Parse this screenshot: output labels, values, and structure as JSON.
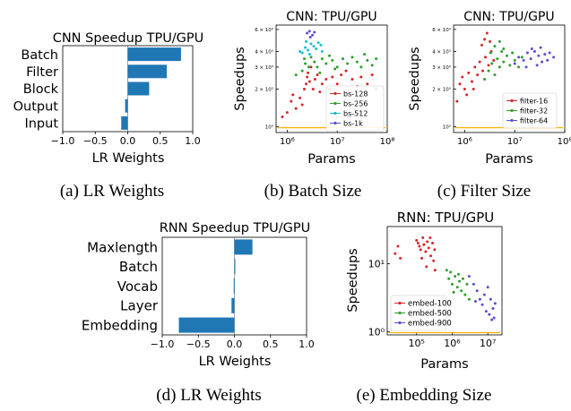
{
  "colors": {
    "bar": "#1f77b4",
    "red": "#d62728",
    "green": "#2ca02c",
    "cyan": "#17becf",
    "purple": "#5a4fcf",
    "hline": "#ffb000"
  },
  "captions": {
    "a": "(a) LR Weights",
    "b": "(b) Batch Size",
    "c": "(c) Filter Size",
    "d": "(d) LR Weights",
    "e": "(e) Embedding Size"
  },
  "chart_data": [
    {
      "id": "a",
      "type": "bar",
      "orientation": "horizontal",
      "title": "CNN Speedup TPU/GPU",
      "xlabel": "LR Weights",
      "categories": [
        "Batch",
        "Filter",
        "Block",
        "Output",
        "Input"
      ],
      "values": [
        0.82,
        0.6,
        0.33,
        -0.04,
        -0.1
      ],
      "xlim": [
        -1.0,
        1.0
      ],
      "xticks": [
        "−1.0",
        "−0.5",
        "0.0",
        "0.5",
        "1.0"
      ]
    },
    {
      "id": "b",
      "type": "scatter",
      "title": "CNN: TPU/GPU",
      "xlabel": "Params",
      "ylabel": "Speedups",
      "xscale": "log",
      "yscale": "log",
      "xlim": [
        600000,
        100000000
      ],
      "ylim": [
        0.9,
        6.5
      ],
      "xticks": [
        "10⁶",
        "10⁷",
        "10⁸"
      ],
      "yticks": [
        "10⁰",
        "2 × 10⁰",
        "3 × 10⁰",
        "4 × 10⁰",
        "6 × 10⁰"
      ],
      "legend": "bottom-right",
      "series": [
        {
          "name": "bs-128",
          "color_key": "red",
          "points": [
            [
              2200000.0,
              2.0
            ],
            [
              2400000.0,
              2.2
            ],
            [
              2500000.0,
              2.5
            ],
            [
              2600000.0,
              2.7
            ],
            [
              2800000.0,
              2.3
            ],
            [
              3000000.0,
              3.0
            ],
            [
              3300000.0,
              2.0
            ],
            [
              3600000.0,
              2.4
            ],
            [
              4000000.0,
              2.6
            ],
            [
              4500000.0,
              1.9
            ],
            [
              5000000.0,
              2.2
            ],
            [
              6000000.0,
              2.4
            ],
            [
              7000000.0,
              2.0
            ],
            [
              8000000.0,
              2.5
            ],
            [
              10000000.0,
              2.2
            ],
            [
              12000000.0,
              2.6
            ],
            [
              15000000.0,
              2.8
            ],
            [
              20000000.0,
              2.4
            ],
            [
              25000000.0,
              2.1
            ],
            [
              30000000.0,
              2.5
            ],
            [
              40000000.0,
              2.2
            ],
            [
              50000000.0,
              2.6
            ],
            [
              60000000.0,
              2.0
            ],
            [
              1200000.0,
              1.6
            ],
            [
              1500000.0,
              1.4
            ],
            [
              1800000.0,
              1.7
            ],
            [
              2000000.0,
              1.5
            ],
            [
              1000000.0,
              1.3
            ],
            [
              800000.0,
              1.2
            ],
            [
              1300000.0,
              1.8
            ]
          ]
        },
        {
          "name": "bs-256",
          "color_key": "green",
          "points": [
            [
              2000000.0,
              2.8
            ],
            [
              2300000.0,
              3.2
            ],
            [
              2700000.0,
              3.0
            ],
            [
              3000000.0,
              3.6
            ],
            [
              3500000.0,
              3.3
            ],
            [
              4000000.0,
              3.0
            ],
            [
              5000000.0,
              3.5
            ],
            [
              6000000.0,
              3.2
            ],
            [
              7000000.0,
              3.7
            ],
            [
              8000000.0,
              3.4
            ],
            [
              10000000.0,
              3.0
            ],
            [
              13000000.0,
              3.5
            ],
            [
              16000000.0,
              3.2
            ],
            [
              20000000.0,
              3.6
            ],
            [
              25000000.0,
              3.3
            ],
            [
              30000000.0,
              3.0
            ],
            [
              35000000.0,
              3.8
            ],
            [
              40000000.0,
              3.4
            ],
            [
              50000000.0,
              3.1
            ],
            [
              60000000.0,
              3.5
            ],
            [
              1500000.0,
              2.6
            ],
            [
              2200000.0,
              3.5
            ],
            [
              9000000.0,
              2.9
            ],
            [
              4500000.0,
              2.7
            ]
          ]
        },
        {
          "name": "bs-512",
          "color_key": "cyan",
          "points": [
            [
              2000000.0,
              3.9
            ],
            [
              2300000.0,
              4.3
            ],
            [
              2600000.0,
              4.1
            ],
            [
              3000000.0,
              4.6
            ],
            [
              3400000.0,
              4.4
            ],
            [
              3800000.0,
              4.2
            ],
            [
              4200000.0,
              4.7
            ],
            [
              1800000.0,
              4.0
            ],
            [
              2800000.0,
              3.8
            ],
            [
              5000000.0,
              4.0
            ],
            [
              4700000.0,
              4.5
            ],
            [
              2400000.0,
              4.8
            ]
          ]
        },
        {
          "name": "bs-1k",
          "color_key": "purple",
          "points": [
            [
              2500000.0,
              5.6
            ],
            [
              2800000.0,
              5.8
            ],
            [
              3200000.0,
              5.4
            ],
            [
              3500000.0,
              5.7
            ],
            [
              2900000.0,
              5.2
            ]
          ]
        }
      ]
    },
    {
      "id": "c",
      "type": "scatter",
      "title": "CNN: TPU/GPU",
      "xlabel": "Params",
      "ylabel": "Speedups",
      "xscale": "log",
      "yscale": "log",
      "xlim": [
        600000,
        100000000
      ],
      "ylim": [
        0.9,
        6.5
      ],
      "xticks": [
        "10⁶",
        "10⁷",
        "10⁸"
      ],
      "yticks": [
        "10⁰",
        "2 × 10⁰",
        "3 × 10⁰",
        "4 × 10⁰",
        "6 × 10⁰"
      ],
      "legend": "bottom-right",
      "series": [
        {
          "name": "filter-16",
          "color_key": "red",
          "points": [
            [
              800000.0,
              2.2
            ],
            [
              900000.0,
              2.5
            ],
            [
              1000000.0,
              2.0
            ],
            [
              1200000.0,
              2.7
            ],
            [
              1400000.0,
              2.3
            ],
            [
              1600000.0,
              3.0
            ],
            [
              1800000.0,
              2.6
            ],
            [
              2000000.0,
              3.3
            ],
            [
              2300000.0,
              2.8
            ],
            [
              2600000.0,
              3.6
            ],
            [
              3000000.0,
              3.1
            ],
            [
              3400000.0,
              4.0
            ],
            [
              3800000.0,
              3.4
            ],
            [
              2200000.0,
              4.5
            ],
            [
              2500000.0,
              5.0
            ],
            [
              2800000.0,
              5.6
            ],
            [
              3200000.0,
              4.8
            ],
            [
              1500000.0,
              2.0
            ],
            [
              1100000.0,
              1.8
            ],
            [
              700000.0,
              1.6
            ]
          ]
        },
        {
          "name": "filter-32",
          "color_key": "green",
          "points": [
            [
              2500000.0,
              2.4
            ],
            [
              3000000.0,
              2.8
            ],
            [
              3500000.0,
              3.2
            ],
            [
              4000000.0,
              2.6
            ],
            [
              4500000.0,
              3.5
            ],
            [
              5000000.0,
              3.0
            ],
            [
              5500000.0,
              4.0
            ],
            [
              6000000.0,
              3.3
            ],
            [
              7000000.0,
              3.7
            ],
            [
              8000000.0,
              3.1
            ],
            [
              9000000.0,
              3.9
            ],
            [
              10000000.0,
              3.4
            ],
            [
              12000000.0,
              3.0
            ],
            [
              14000000.0,
              3.6
            ],
            [
              4000000.0,
              4.4
            ],
            [
              5000000.0,
              4.8
            ],
            [
              6000000.0,
              4.2
            ],
            [
              3300000.0,
              3.9
            ]
          ]
        },
        {
          "name": "filter-64",
          "color_key": "purple",
          "points": [
            [
              10000000.0,
              3.2
            ],
            [
              12000000.0,
              3.6
            ],
            [
              15000000.0,
              3.4
            ],
            [
              18000000.0,
              3.9
            ],
            [
              21000000.0,
              3.5
            ],
            [
              25000000.0,
              4.0
            ],
            [
              30000000.0,
              3.7
            ],
            [
              35000000.0,
              3.3
            ],
            [
              40000000.0,
              3.8
            ],
            [
              45000000.0,
              3.4
            ],
            [
              50000000.0,
              3.9
            ],
            [
              60000000.0,
              3.6
            ],
            [
              17000000.0,
              3.0
            ],
            [
              28000000.0,
              3.1
            ],
            [
              22000000.0,
              4.2
            ],
            [
              33000000.0,
              4.3
            ]
          ]
        }
      ]
    },
    {
      "id": "d",
      "type": "bar",
      "orientation": "horizontal",
      "title": "RNN Speedup TPU/GPU",
      "xlabel": "LR Weights",
      "categories": [
        "Maxlength",
        "Batch",
        "Vocab",
        "Layer",
        "Embedding"
      ],
      "values": [
        0.25,
        0.0,
        -0.01,
        -0.04,
        -0.77
      ],
      "xlim": [
        -1.0,
        1.0
      ],
      "xticks": [
        "−1.0",
        "−0.5",
        "0.0",
        "0.5",
        "1.0"
      ]
    },
    {
      "id": "e",
      "type": "scatter",
      "title": "RNN: TPU/GPU",
      "xlabel": "Params",
      "ylabel": "Speedups",
      "xscale": "log",
      "yscale": "log",
      "xlim": [
        15000,
        25000000
      ],
      "ylim": [
        0.9,
        35
      ],
      "xticks": [
        "10⁵",
        "10⁶",
        "10⁷"
      ],
      "yticks": [
        "10⁰",
        "10¹"
      ],
      "legend": "bottom-left",
      "series": [
        {
          "name": "embed-100",
          "color_key": "red",
          "points": [
            [
              25000,
              14
            ],
            [
              30000,
              18
            ],
            [
              35000,
              12
            ],
            [
              100000,
              22
            ],
            [
              110000,
              20
            ],
            [
              120000,
              18
            ],
            [
              130000,
              16
            ],
            [
              150000,
              24
            ],
            [
              160000,
              19
            ],
            [
              180000,
              15
            ],
            [
              200000,
              21
            ],
            [
              220000,
              17
            ],
            [
              250000,
              13
            ],
            [
              280000,
              20
            ],
            [
              300000,
              11
            ],
            [
              320000,
              16
            ],
            [
              140000,
              12
            ],
            [
              240000,
              24
            ],
            [
              190000,
              9
            ],
            [
              330000,
              8
            ]
          ]
        },
        {
          "name": "embed-500",
          "color_key": "green",
          "points": [
            [
              700000,
              8
            ],
            [
              800000,
              6
            ],
            [
              900000,
              7.5
            ],
            [
              1000000,
              5
            ],
            [
              1200000,
              6.5
            ],
            [
              1400000,
              4.5
            ],
            [
              1600000,
              5.5
            ],
            [
              1800000,
              4
            ],
            [
              2000000,
              6
            ],
            [
              2300000,
              3.5
            ],
            [
              2600000,
              5
            ],
            [
              3000000,
              3
            ],
            [
              1100000,
              3.8
            ],
            [
              1500000,
              7
            ]
          ]
        },
        {
          "name": "embed-900",
          "color_key": "purple",
          "points": [
            [
              3000000,
              6.5
            ],
            [
              4000000,
              5
            ],
            [
              5000000,
              4
            ],
            [
              6000000,
              3
            ],
            [
              7000000,
              2.5
            ],
            [
              8000000,
              3.5
            ],
            [
              9000000,
              2
            ],
            [
              10000000,
              4.5
            ],
            [
              11000000,
              1.8
            ],
            [
              12000000,
              3
            ],
            [
              14000000,
              2.2
            ],
            [
              15000000,
              1.6
            ],
            [
              16000000,
              2.6
            ],
            [
              13000000,
              1.5
            ],
            [
              4500000,
              2.8
            ]
          ]
        }
      ]
    }
  ]
}
